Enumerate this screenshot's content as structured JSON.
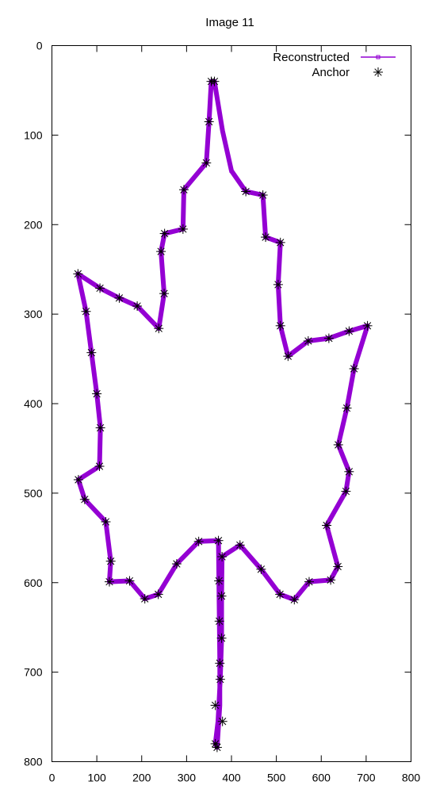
{
  "chart_data": {
    "type": "line",
    "title": "Image 11",
    "xlabel": "",
    "ylabel": "",
    "xlim": [
      0,
      800
    ],
    "ylim": [
      0,
      800
    ],
    "y_inverted": true,
    "grid": false,
    "legend_placement": "top-right",
    "x_ticks": [
      "0",
      "100",
      "200",
      "300",
      "400",
      "500",
      "600",
      "700",
      "800"
    ],
    "y_ticks": [
      "0",
      "100",
      "200",
      "300",
      "400",
      "500",
      "600",
      "700",
      "800"
    ],
    "series": [
      {
        "name": "Reconstructed",
        "color": "#9400d3",
        "points": [
          [
            355,
            40
          ],
          [
            350,
            85
          ],
          [
            344,
            131
          ],
          [
            294,
            161
          ],
          [
            292,
            205
          ],
          [
            251,
            210
          ],
          [
            243,
            230
          ],
          [
            250,
            277
          ],
          [
            238,
            316
          ],
          [
            190,
            291
          ],
          [
            150,
            282
          ],
          [
            107,
            271
          ],
          [
            58,
            255
          ],
          [
            76,
            297
          ],
          [
            88,
            343
          ],
          [
            100,
            389
          ],
          [
            108,
            427
          ],
          [
            106,
            470
          ],
          [
            59,
            485
          ],
          [
            73,
            507
          ],
          [
            120,
            532
          ],
          [
            131,
            576
          ],
          [
            128,
            599
          ],
          [
            173,
            598
          ],
          [
            207,
            618
          ],
          [
            237,
            613
          ],
          [
            278,
            579
          ],
          [
            327,
            554
          ],
          [
            371,
            553
          ],
          [
            372,
            598
          ],
          [
            373,
            643
          ],
          [
            374,
            690
          ],
          [
            374,
            737
          ],
          [
            368,
            784
          ],
          [
            364,
            780
          ],
          [
            370,
            755
          ],
          [
            375,
            708
          ],
          [
            378,
            662
          ],
          [
            378,
            615
          ],
          [
            379,
            571
          ],
          [
            419,
            558
          ],
          [
            466,
            585
          ],
          [
            508,
            613
          ],
          [
            540,
            619
          ],
          [
            573,
            599
          ],
          [
            621,
            597
          ],
          [
            637,
            582
          ],
          [
            612,
            536
          ],
          [
            655,
            498
          ],
          [
            662,
            476
          ],
          [
            638,
            446
          ],
          [
            657,
            405
          ],
          [
            673,
            361
          ],
          [
            703,
            313
          ],
          [
            662,
            319
          ],
          [
            617,
            327
          ],
          [
            571,
            330
          ],
          [
            526,
            347
          ],
          [
            509,
            313
          ],
          [
            504,
            267
          ],
          [
            509,
            220
          ],
          [
            476,
            214
          ],
          [
            470,
            167
          ],
          [
            432,
            163
          ],
          [
            400,
            140
          ],
          [
            380,
            95
          ],
          [
            362,
            40
          ],
          [
            355,
            40
          ]
        ]
      },
      {
        "name": "Anchor",
        "color": "#000000",
        "points": [
          [
            355,
            40
          ],
          [
            362,
            40
          ],
          [
            350,
            85
          ],
          [
            344,
            131
          ],
          [
            294,
            161
          ],
          [
            292,
            205
          ],
          [
            251,
            210
          ],
          [
            243,
            230
          ],
          [
            250,
            277
          ],
          [
            238,
            316
          ],
          [
            190,
            291
          ],
          [
            150,
            282
          ],
          [
            107,
            271
          ],
          [
            58,
            255
          ],
          [
            76,
            297
          ],
          [
            88,
            343
          ],
          [
            100,
            389
          ],
          [
            108,
            427
          ],
          [
            106,
            470
          ],
          [
            59,
            485
          ],
          [
            73,
            507
          ],
          [
            120,
            532
          ],
          [
            131,
            576
          ],
          [
            128,
            599
          ],
          [
            173,
            598
          ],
          [
            207,
            618
          ],
          [
            237,
            613
          ],
          [
            278,
            579
          ],
          [
            327,
            554
          ],
          [
            371,
            553
          ],
          [
            372,
            598
          ],
          [
            373,
            643
          ],
          [
            374,
            690
          ],
          [
            364,
            737
          ],
          [
            368,
            784
          ],
          [
            364,
            780
          ],
          [
            380,
            755
          ],
          [
            375,
            708
          ],
          [
            378,
            662
          ],
          [
            378,
            615
          ],
          [
            379,
            571
          ],
          [
            419,
            558
          ],
          [
            466,
            585
          ],
          [
            508,
            613
          ],
          [
            540,
            619
          ],
          [
            573,
            599
          ],
          [
            621,
            597
          ],
          [
            637,
            582
          ],
          [
            612,
            536
          ],
          [
            655,
            498
          ],
          [
            662,
            476
          ],
          [
            638,
            446
          ],
          [
            657,
            405
          ],
          [
            673,
            361
          ],
          [
            703,
            313
          ],
          [
            662,
            319
          ],
          [
            617,
            327
          ],
          [
            571,
            330
          ],
          [
            526,
            347
          ],
          [
            509,
            313
          ],
          [
            504,
            267
          ],
          [
            509,
            220
          ],
          [
            476,
            214
          ],
          [
            470,
            167
          ],
          [
            432,
            163
          ]
        ]
      }
    ]
  }
}
